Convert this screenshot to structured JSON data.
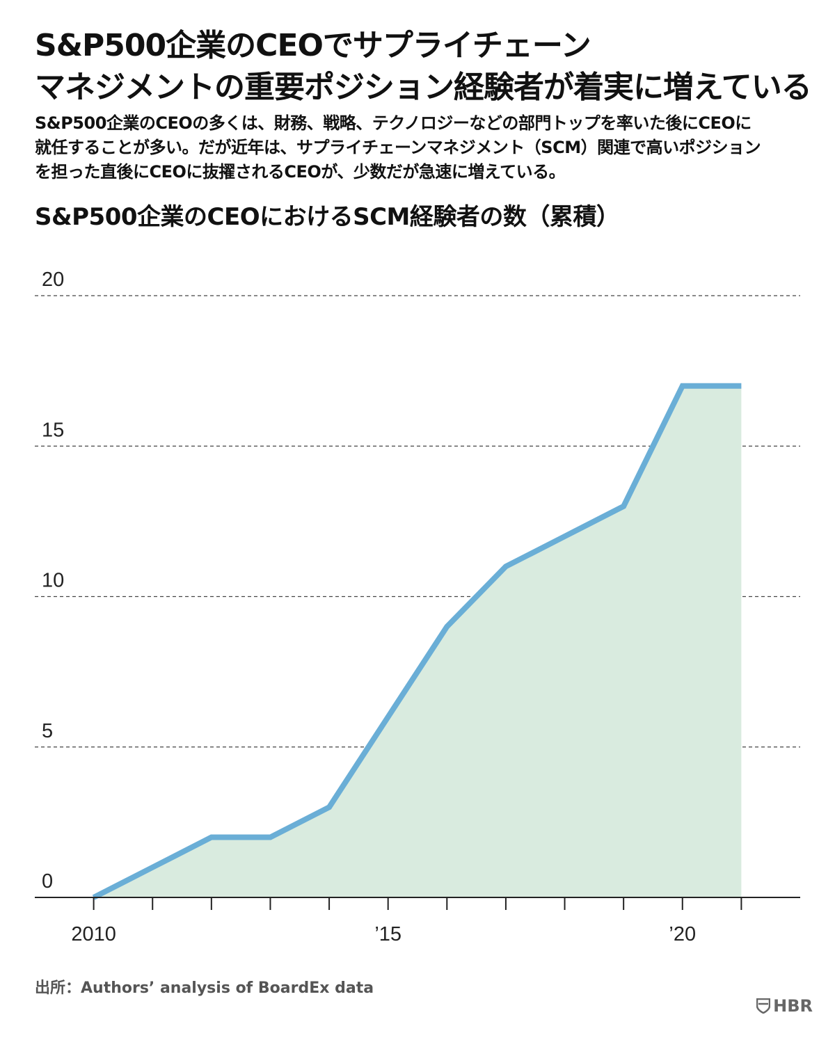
{
  "title_lines": [
    "S&P500企業のCEOでサプライチェーン",
    "マネジメントの重要ポジション経験者が着実に増えている"
  ],
  "description_lines": [
    "S&P500企業のCEOの多くは、財務、戦略、テクノロジーなどの部門トップを率いた後にCEOに",
    "就任することが多い。だが近年は、サプライチェーンマネジメント（SCM）関連で高いポジション",
    "を担った直後にCEOに抜擢されるCEOが、少数だが急速に増えている。"
  ],
  "source": "出所：Authors’ analysis of BoardEx data",
  "brand": "HBR",
  "colors": {
    "line": "#6aaed6",
    "area": "#d9ebdf",
    "grid": "#444444",
    "axis": "#222222"
  },
  "chart_data": {
    "type": "area",
    "title": "S&P500企業のCEOにおけるSCM経験者の数（累積）",
    "x": [
      2010,
      2011,
      2012,
      2013,
      2014,
      2015,
      2016,
      2017,
      2018,
      2019,
      2020,
      2021
    ],
    "values": [
      0,
      1,
      2,
      2,
      3,
      6,
      9,
      11,
      12,
      13,
      17,
      17
    ],
    "xlim": [
      2009,
      2022
    ],
    "ylim": [
      0,
      20
    ],
    "y_ticks": [
      0,
      5,
      10,
      15,
      20
    ],
    "x_tick_positions": [
      2010,
      2011,
      2012,
      2013,
      2014,
      2015,
      2016,
      2017,
      2018,
      2019,
      2020,
      2021
    ],
    "x_tick_labels": [
      {
        "x": 2010,
        "label": "2010"
      },
      {
        "x": 2015,
        "label": "’15"
      },
      {
        "x": 2020,
        "label": "’20"
      }
    ],
    "grid": "horizontal dashed",
    "xlabel": "",
    "ylabel": ""
  }
}
